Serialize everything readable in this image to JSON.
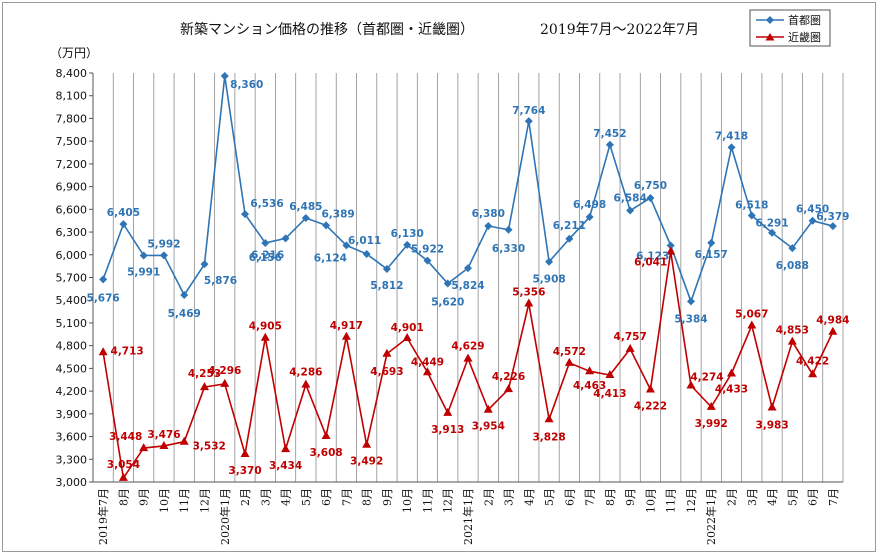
{
  "chart_data": {
    "type": "line",
    "title": "新築マンション価格の推移（首都圏・近畿圏）",
    "subtitle": "2019年7月～2022年7月",
    "unit_label": "（万円）",
    "ylim": [
      3000,
      8400
    ],
    "ystep": 300,
    "grid": "vertical",
    "legend_position": "top-right",
    "categories": [
      "2019年7月",
      "8月",
      "9月",
      "10月",
      "11月",
      "12月",
      "2020年1月",
      "2月",
      "3月",
      "4月",
      "5月",
      "6月",
      "7月",
      "8月",
      "9月",
      "10月",
      "11月",
      "12月",
      "2021年1月",
      "2月",
      "3月",
      "4月",
      "5月",
      "6月",
      "7月",
      "8月",
      "9月",
      "10月",
      "11月",
      "12月",
      "2022年1月",
      "2月",
      "3月",
      "4月",
      "5月",
      "6月",
      "7月"
    ],
    "series": [
      {
        "name": "首都圏",
        "color": "#2f75b5",
        "marker": "diamond",
        "values": [
          5676,
          6405,
          5991,
          5992,
          5469,
          5876,
          8360,
          6536,
          6156,
          6216,
          6485,
          6389,
          6124,
          6011,
          5812,
          6130,
          5922,
          5620,
          5824,
          6380,
          6330,
          7764,
          5908,
          6211,
          6498,
          7452,
          6584,
          6750,
          6123,
          5384,
          6157,
          7418,
          6518,
          6291,
          6088,
          6450,
          6379
        ]
      },
      {
        "name": "近畿圏",
        "color": "#c00000",
        "marker": "triangle",
        "values": [
          4713,
          3054,
          3448,
          3476,
          3532,
          4253,
          4296,
          3370,
          4905,
          3434,
          4286,
          3608,
          4917,
          3492,
          4693,
          4901,
          4449,
          3913,
          4629,
          3954,
          4226,
          5356,
          3828,
          4572,
          4463,
          4413,
          4757,
          4222,
          6041,
          4274,
          3992,
          4433,
          5067,
          3983,
          4853,
          4422,
          4984
        ]
      }
    ]
  }
}
